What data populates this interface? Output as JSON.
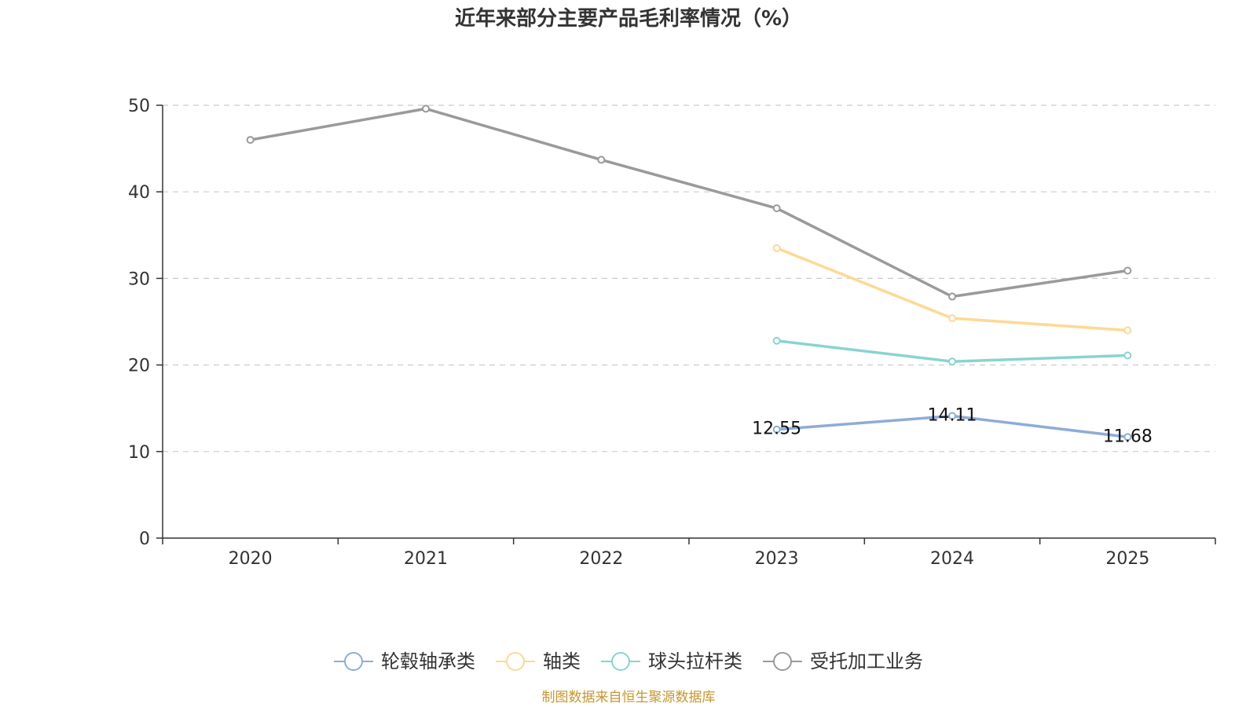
{
  "chart_data": {
    "type": "line",
    "title": "近年来部分主要产品毛利率情况（%）",
    "source": "制图数据来自恒生聚源数据库",
    "categories": [
      "2020",
      "2021",
      "2022",
      "2023",
      "2024",
      "2025"
    ],
    "ylim": [
      0,
      50
    ],
    "yticks": [
      0,
      10,
      20,
      30,
      40,
      50
    ],
    "grid": true,
    "legend_position": "bottom",
    "xlabel": "",
    "ylabel": "",
    "series": [
      {
        "name": "轮毂轴承类",
        "color": "#8eacd8",
        "values": [
          null,
          null,
          null,
          12.55,
          14.11,
          11.68
        ],
        "labels": [
          "",
          "",
          "",
          "12.55",
          "14.11",
          "11.68"
        ],
        "show_labels": true
      },
      {
        "name": "轴类",
        "color": "#fdd994",
        "values": [
          null,
          null,
          null,
          33.5,
          25.4,
          24.0
        ],
        "show_labels": false
      },
      {
        "name": "球头拉杆类",
        "color": "#88d4d1",
        "values": [
          null,
          null,
          null,
          22.8,
          20.4,
          21.1
        ],
        "show_labels": false
      },
      {
        "name": "受托加工业务",
        "color": "#9a9a9a",
        "values": [
          46.0,
          49.6,
          43.7,
          38.1,
          27.9,
          30.9
        ],
        "show_labels": false
      }
    ]
  }
}
